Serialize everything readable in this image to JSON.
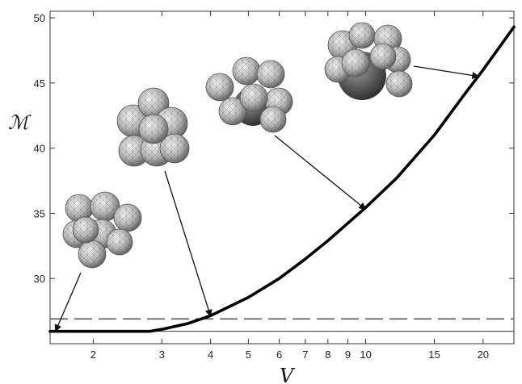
{
  "chart_data": {
    "type": "line",
    "xlabel": "V",
    "ylabel": "ℳ",
    "x_scale": "log",
    "xlim": [
      1.55,
      24
    ],
    "ylim": [
      25.0,
      50.5
    ],
    "x_ticks": [
      2,
      3,
      4,
      5,
      6,
      7,
      8,
      9,
      10,
      15,
      20
    ],
    "x_tick_labels": [
      "2",
      "3",
      "4",
      "5",
      "6",
      "7",
      "8",
      "9",
      "10",
      "15",
      "20"
    ],
    "y_ticks": [
      30,
      35,
      40,
      45,
      50
    ],
    "y_tick_labels": [
      "30",
      "35",
      "40",
      "45",
      "50"
    ],
    "grid": false,
    "series": [
      {
        "style": "thick-solid",
        "x": [
          1.55,
          2.0,
          2.5,
          2.8,
          3.0,
          3.5,
          4.0,
          5.0,
          6.0,
          7.0,
          8.0,
          10.0,
          12.0,
          15.0,
          18.0,
          20.0,
          24.0
        ],
        "y": [
          25.95,
          25.95,
          25.95,
          25.95,
          26.1,
          26.55,
          27.15,
          28.55,
          30.0,
          31.5,
          32.9,
          35.45,
          37.7,
          41.0,
          44.2,
          46.0,
          49.3
        ]
      }
    ],
    "reference_lines": [
      {
        "style": "dashed",
        "y": 26.9
      },
      {
        "style": "thin-solid",
        "y": 25.95
      }
    ],
    "annotations": [
      {
        "type": "arrow-with-cluster-image",
        "target": [
          1.6,
          25.95
        ]
      },
      {
        "type": "arrow-with-cluster-image",
        "target": [
          4.0,
          27.1
        ]
      },
      {
        "type": "arrow-with-cluster-image",
        "target": [
          10.0,
          35.3
        ]
      },
      {
        "type": "arrow-with-cluster-image",
        "target": [
          19.5,
          45.5
        ]
      }
    ]
  }
}
